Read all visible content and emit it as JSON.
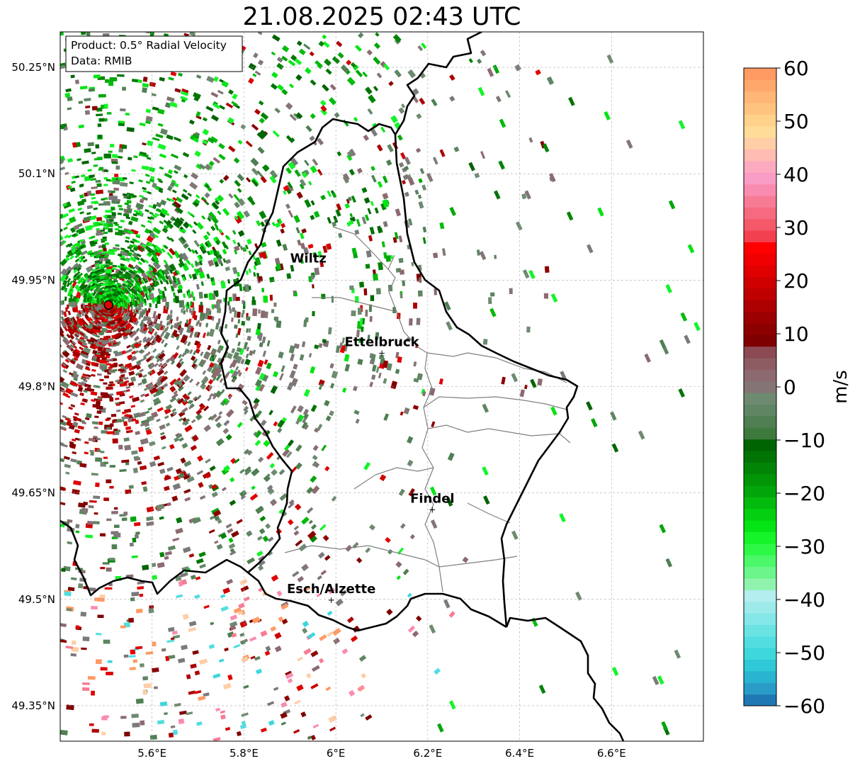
{
  "title": "21.08.2025 02:43 UTC",
  "info_box": {
    "product": "Product: 0.5° Radial Velocity",
    "data": "Data: RMIB"
  },
  "map": {
    "extent": {
      "lon_min": 5.4,
      "lon_max": 6.8,
      "lat_min": 49.3,
      "lat_max": 50.3
    },
    "lon_ticks": [
      {
        "value": 5.6,
        "label": "5.6°E"
      },
      {
        "value": 5.8,
        "label": "5.8°E"
      },
      {
        "value": 6.0,
        "label": "6°E"
      },
      {
        "value": 6.2,
        "label": "6.2°E"
      },
      {
        "value": 6.4,
        "label": "6.4°E"
      },
      {
        "value": 6.6,
        "label": "6.6°E"
      }
    ],
    "lat_ticks": [
      {
        "value": 50.25,
        "label": "50.25°N"
      },
      {
        "value": 50.1,
        "label": "50.1°N"
      },
      {
        "value": 49.95,
        "label": "49.95°N"
      },
      {
        "value": 49.8,
        "label": "49.8°N"
      },
      {
        "value": 49.65,
        "label": "49.65°N"
      },
      {
        "value": 49.5,
        "label": "49.5°N"
      },
      {
        "value": 49.35,
        "label": "49.35°N"
      }
    ],
    "radar_site": {
      "lon": 5.505,
      "lat": 49.915
    },
    "places": [
      {
        "name": "Wiltz",
        "lon": 5.94,
        "lat": 49.965,
        "marker": false
      },
      {
        "name": "Ettelbruck",
        "lon": 6.1,
        "lat": 49.847,
        "marker": true
      },
      {
        "name": "Findel",
        "lon": 6.21,
        "lat": 49.626,
        "marker": true
      },
      {
        "name": "Esch/Alzette",
        "lon": 5.99,
        "lat": 49.499,
        "marker": true
      }
    ]
  },
  "colorbar": {
    "label": "m/s",
    "min": -60,
    "max": 60,
    "ticks": [
      60,
      50,
      40,
      30,
      20,
      10,
      0,
      -10,
      -20,
      -30,
      -40,
      -50,
      -60
    ],
    "tick_labels": [
      "60",
      "50",
      "40",
      "30",
      "20",
      "10",
      "0",
      "−10",
      "−20",
      "−30",
      "−40",
      "−50",
      "−60"
    ],
    "colors": [
      "#1f78b4",
      "#2a9cc8",
      "#29b5d0",
      "#2ec8d6",
      "#3dd7dc",
      "#52dde0",
      "#6be3e3",
      "#85e7e7",
      "#9deaea",
      "#b4eeee",
      "#8ff3ae",
      "#6cf58a",
      "#4cf86a",
      "#2ef846",
      "#14f428",
      "#05e414",
      "#04cf10",
      "#03bb0c",
      "#02a60a",
      "#029508",
      "#028406",
      "#027405",
      "#016403",
      "#3e7a3e",
      "#4f7f52",
      "#5f8563",
      "#6e8a70",
      "#837575",
      "#8c6a70",
      "#8d5c62",
      "#8c4a52",
      "#7e0000",
      "#8c0000",
      "#9c0000",
      "#ad0000",
      "#be0000",
      "#cf0000",
      "#e00000",
      "#f00000",
      "#ff0000",
      "#f2404e",
      "#f45869",
      "#f66a80",
      "#f87b95",
      "#fa8bb0",
      "#fa9dc6",
      "#fcaac0",
      "#ffbcb2",
      "#ffcda6",
      "#ffdc98",
      "#ffd18a",
      "#ffc380",
      "#ffb676",
      "#ffa86c",
      "#ff9a62"
    ]
  }
}
